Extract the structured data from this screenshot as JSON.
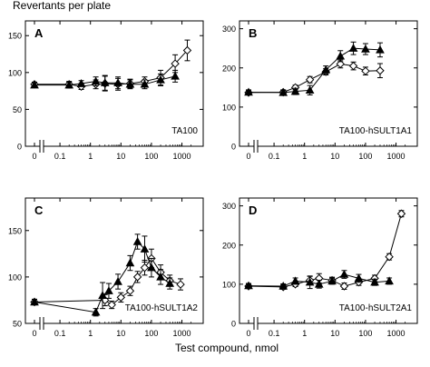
{
  "figure": {
    "y_axis_title": "Revertants per plate",
    "x_axis_title": "Test compound, nmol"
  },
  "x_tick_labels": [
    "0",
    "0.1",
    "1",
    "10",
    "100",
    "1000"
  ],
  "colors": {
    "ink": "#000000",
    "open_marker_fill": "#ffffff"
  },
  "chart_data": [
    {
      "type": "line",
      "panel_letter": "A",
      "strain_label": "TA100",
      "ylim": [
        0,
        170
      ],
      "y_ticks": [
        0,
        50,
        100,
        150
      ],
      "x_ticks": [
        0,
        0.1,
        1,
        10,
        100,
        1000
      ],
      "series": [
        {
          "marker": "open-diamond",
          "points": [
            {
              "x": 0,
              "y": 84,
              "err": 3
            },
            {
              "x": 0.2,
              "y": 84,
              "err": 4
            },
            {
              "x": 0.5,
              "y": 81,
              "err": 4
            },
            {
              "x": 1.5,
              "y": 84,
              "err": 6
            },
            {
              "x": 3,
              "y": 85,
              "err": 10
            },
            {
              "x": 8,
              "y": 84,
              "err": 8
            },
            {
              "x": 20,
              "y": 85,
              "err": 6
            },
            {
              "x": 60,
              "y": 88,
              "err": 6
            },
            {
              "x": 200,
              "y": 93,
              "err": 10
            },
            {
              "x": 600,
              "y": 112,
              "err": 12
            },
            {
              "x": 1500,
              "y": 130,
              "err": 14
            }
          ]
        },
        {
          "marker": "filled-triangle",
          "points": [
            {
              "x": 0,
              "y": 83,
              "err": 3
            },
            {
              "x": 0.2,
              "y": 83,
              "err": 4
            },
            {
              "x": 0.5,
              "y": 85,
              "err": 4
            },
            {
              "x": 1.5,
              "y": 88,
              "err": 6
            },
            {
              "x": 3,
              "y": 86,
              "err": 10
            },
            {
              "x": 8,
              "y": 86,
              "err": 8
            },
            {
              "x": 20,
              "y": 84,
              "err": 6
            },
            {
              "x": 60,
              "y": 84,
              "err": 6
            },
            {
              "x": 200,
              "y": 90,
              "err": 8
            },
            {
              "x": 600,
              "y": 95,
              "err": 8
            }
          ]
        }
      ]
    },
    {
      "type": "line",
      "panel_letter": "B",
      "strain_label": "TA100-hSULT1A1",
      "ylim": [
        0,
        320
      ],
      "y_ticks": [
        0,
        100,
        200,
        300
      ],
      "x_ticks": [
        0,
        0.1,
        1,
        10,
        100,
        1000
      ],
      "series": [
        {
          "marker": "open-diamond",
          "points": [
            {
              "x": 0,
              "y": 137,
              "err": 6
            },
            {
              "x": 0.2,
              "y": 138,
              "err": 6
            },
            {
              "x": 0.5,
              "y": 150,
              "err": 6
            },
            {
              "x": 1.5,
              "y": 170,
              "err": 8
            },
            {
              "x": 5,
              "y": 190,
              "err": 8
            },
            {
              "x": 15,
              "y": 210,
              "err": 10
            },
            {
              "x": 40,
              "y": 205,
              "err": 10
            },
            {
              "x": 100,
              "y": 192,
              "err": 10
            },
            {
              "x": 300,
              "y": 193,
              "err": 18
            }
          ]
        },
        {
          "marker": "filled-triangle",
          "points": [
            {
              "x": 0,
              "y": 138,
              "err": 6
            },
            {
              "x": 0.2,
              "y": 137,
              "err": 6
            },
            {
              "x": 0.5,
              "y": 140,
              "err": 8
            },
            {
              "x": 1.5,
              "y": 143,
              "err": 12
            },
            {
              "x": 5,
              "y": 195,
              "err": 10
            },
            {
              "x": 15,
              "y": 230,
              "err": 14
            },
            {
              "x": 40,
              "y": 250,
              "err": 16
            },
            {
              "x": 100,
              "y": 248,
              "err": 14
            },
            {
              "x": 300,
              "y": 246,
              "err": 18
            }
          ]
        }
      ]
    },
    {
      "type": "line",
      "panel_letter": "C",
      "strain_label": "TA100-hSULT1A2",
      "ylim": [
        50,
        185
      ],
      "y_ticks": [
        50,
        100,
        150
      ],
      "x_ticks": [
        0,
        0.1,
        1,
        10,
        100,
        1000
      ],
      "series": [
        {
          "marker": "open-diamond",
          "points": [
            {
              "x": 0,
              "y": 73,
              "err": 3
            },
            {
              "x": 3,
              "y": 75,
              "err": 6
            },
            {
              "x": 5,
              "y": 70,
              "err": 4
            },
            {
              "x": 10,
              "y": 78,
              "err": 5
            },
            {
              "x": 20,
              "y": 85,
              "err": 5
            },
            {
              "x": 35,
              "y": 100,
              "err": 6
            },
            {
              "x": 60,
              "y": 110,
              "err": 8
            },
            {
              "x": 100,
              "y": 120,
              "err": 10
            },
            {
              "x": 200,
              "y": 105,
              "err": 8
            },
            {
              "x": 400,
              "y": 96,
              "err": 6
            },
            {
              "x": 900,
              "y": 92,
              "err": 6
            }
          ]
        },
        {
          "marker": "filled-triangle",
          "points": [
            {
              "x": 0,
              "y": 73,
              "err": 3
            },
            {
              "x": 1.5,
              "y": 62,
              "err": 4
            },
            {
              "x": 2.5,
              "y": 80,
              "err": 14
            },
            {
              "x": 4,
              "y": 85,
              "err": 8
            },
            {
              "x": 8,
              "y": 95,
              "err": 8
            },
            {
              "x": 20,
              "y": 115,
              "err": 8
            },
            {
              "x": 35,
              "y": 138,
              "err": 8
            },
            {
              "x": 60,
              "y": 130,
              "err": 14
            },
            {
              "x": 100,
              "y": 110,
              "err": 10
            },
            {
              "x": 200,
              "y": 100,
              "err": 8
            },
            {
              "x": 400,
              "y": 93,
              "err": 6
            }
          ]
        }
      ]
    },
    {
      "type": "line",
      "panel_letter": "D",
      "strain_label": "TA100-hSULT2A1",
      "ylim": [
        0,
        320
      ],
      "y_ticks": [
        0,
        100,
        200,
        300
      ],
      "x_ticks": [
        0,
        0.1,
        1,
        10,
        100,
        1000
      ],
      "series": [
        {
          "marker": "open-diamond",
          "points": [
            {
              "x": 0,
              "y": 95,
              "err": 6
            },
            {
              "x": 0.2,
              "y": 93,
              "err": 6
            },
            {
              "x": 0.5,
              "y": 100,
              "err": 6
            },
            {
              "x": 1.5,
              "y": 110,
              "err": 10
            },
            {
              "x": 3,
              "y": 115,
              "err": 12
            },
            {
              "x": 8,
              "y": 110,
              "err": 8
            },
            {
              "x": 20,
              "y": 95,
              "err": 8
            },
            {
              "x": 60,
              "y": 105,
              "err": 8
            },
            {
              "x": 200,
              "y": 115,
              "err": 8
            },
            {
              "x": 600,
              "y": 170,
              "err": 8
            },
            {
              "x": 1500,
              "y": 280,
              "err": 8
            }
          ]
        },
        {
          "marker": "filled-triangle",
          "points": [
            {
              "x": 0,
              "y": 96,
              "err": 6
            },
            {
              "x": 0.2,
              "y": 95,
              "err": 6
            },
            {
              "x": 0.5,
              "y": 108,
              "err": 8
            },
            {
              "x": 1.5,
              "y": 105,
              "err": 16
            },
            {
              "x": 3,
              "y": 100,
              "err": 10
            },
            {
              "x": 8,
              "y": 108,
              "err": 8
            },
            {
              "x": 20,
              "y": 125,
              "err": 10
            },
            {
              "x": 60,
              "y": 115,
              "err": 10
            },
            {
              "x": 200,
              "y": 105,
              "err": 8
            },
            {
              "x": 600,
              "y": 108,
              "err": 8
            }
          ]
        }
      ]
    }
  ]
}
